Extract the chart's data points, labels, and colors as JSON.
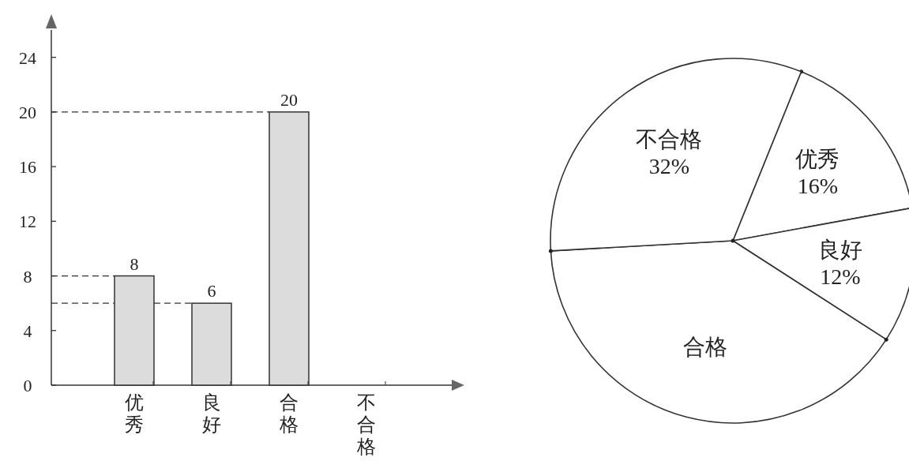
{
  "chart_data": [
    {
      "type": "bar",
      "categories": [
        "优秀",
        "良好",
        "合格",
        "不合格"
      ],
      "values": [
        8,
        6,
        20,
        null
      ],
      "color": "#dcdcdc",
      "ylim": [
        0,
        26
      ],
      "yticks": [
        0,
        4,
        8,
        12,
        16,
        20,
        24
      ],
      "data_labels": true,
      "ref_lines": [
        {
          "axis": "y",
          "value": 20,
          "line_style": "dashed"
        },
        {
          "axis": "y",
          "value": 8,
          "line_style": "dashed"
        },
        {
          "axis": "y",
          "value": 6,
          "line_style": "dashed"
        }
      ]
    },
    {
      "type": "pie",
      "categories": [
        "优秀",
        "良好",
        "合格",
        "不合格"
      ],
      "values": [
        16,
        12,
        40,
        32
      ],
      "colors": [
        "#ffffff",
        "#ffffff",
        "#ffffff",
        "#ffffff"
      ],
      "value_labels": [
        "16%",
        "12%",
        null,
        "32%"
      ]
    }
  ]
}
